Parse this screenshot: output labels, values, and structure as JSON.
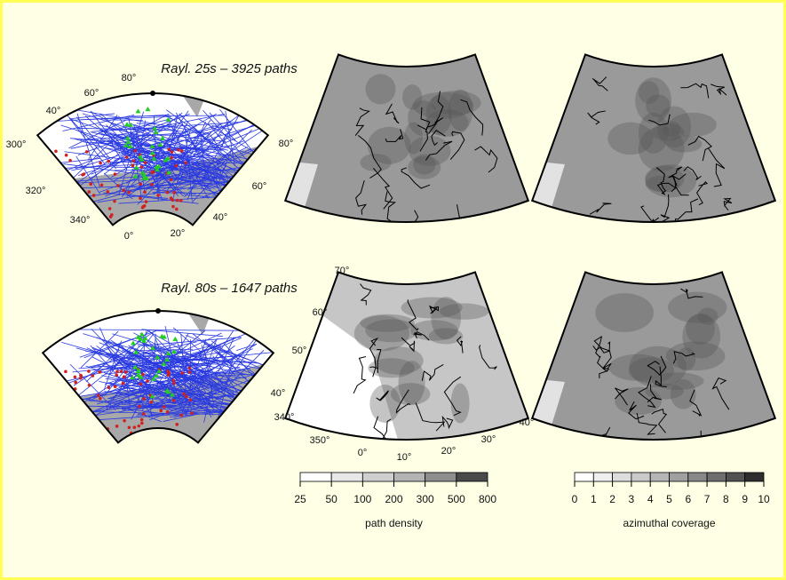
{
  "panels": [
    {
      "title": "Rayl. 25s – 3925 paths"
    },
    {
      "title": "Rayl. 80s – 1647 paths"
    }
  ],
  "map_labels": {
    "top_left": [
      "80°",
      "60°",
      "40°",
      "300°",
      "320°",
      "340°",
      "0°",
      "20°",
      "40°",
      "60°",
      "80°"
    ],
    "bottom_middle": [
      "70°",
      "60°",
      "50°",
      "40°",
      "340°",
      "350°",
      "0°",
      "10°",
      "20°",
      "30°",
      "40°"
    ]
  },
  "colorbars": [
    {
      "label": "path density",
      "ticks": [
        25,
        50,
        100,
        200,
        300,
        500,
        800
      ],
      "colors": [
        "#ffffff",
        "#e8e8e8",
        "#cfcfcf",
        "#b4b4b4",
        "#8e8e8e",
        "#4a4a4a"
      ]
    },
    {
      "label": "azimuthal coverage",
      "ticks": [
        0,
        1,
        2,
        3,
        4,
        5,
        6,
        7,
        8,
        9,
        10
      ],
      "colors": [
        "#ffffff",
        "#efefef",
        "#dddddd",
        "#cacaca",
        "#b6b6b6",
        "#a0a0a0",
        "#888888",
        "#6e6e6e",
        "#525252",
        "#2e2e2e"
      ]
    }
  ]
}
